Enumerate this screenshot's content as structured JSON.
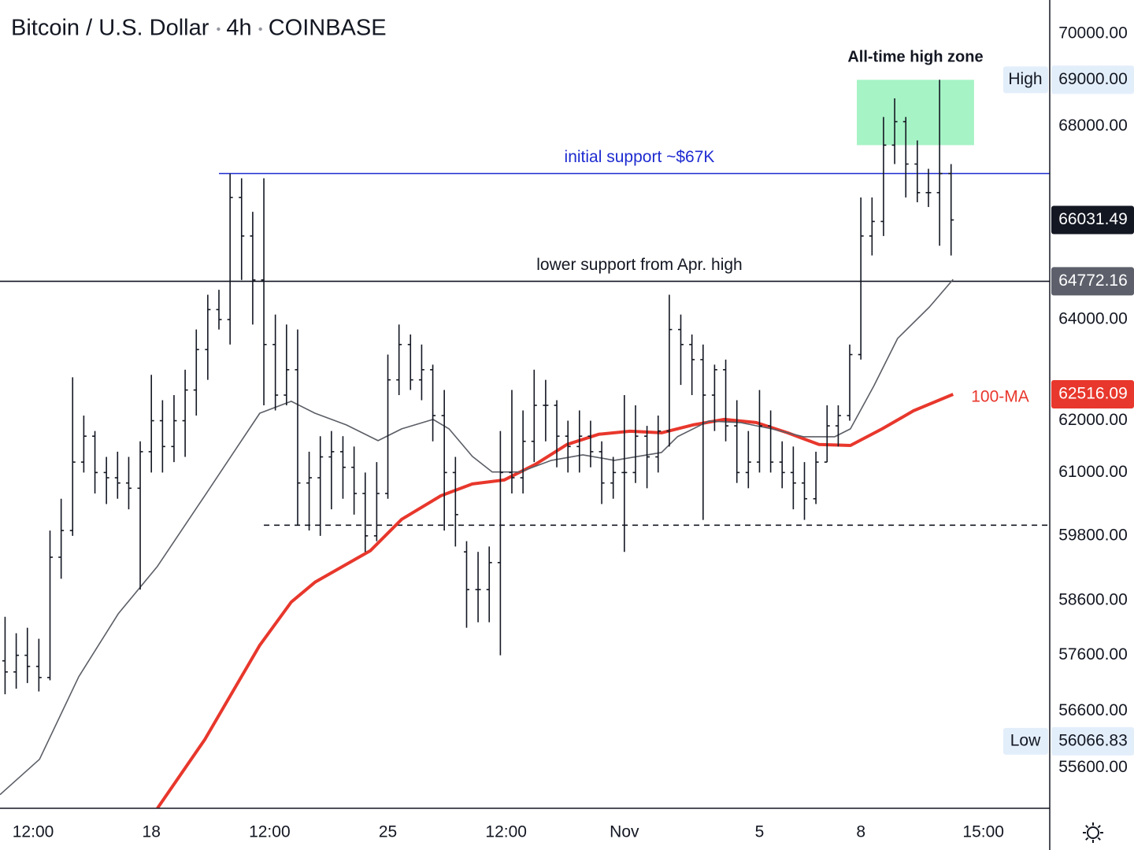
{
  "chart_data": {
    "type": "ohlc",
    "title": "Bitcoin / U.S. Dollar",
    "interval": "4h",
    "exchange": "COINBASE",
    "log": true,
    "bar_color": "#131722",
    "x": [
      -0.33,
      0,
      0.33,
      0.67,
      1,
      1.33,
      1.67,
      2,
      2.33,
      2.67,
      3,
      3.33,
      3.67,
      4,
      4.33,
      4.67,
      5,
      5.33,
      5.67,
      6,
      6.33,
      6.67,
      7,
      7.33,
      7.67,
      8,
      8.33,
      8.67,
      9,
      9.33,
      9.67,
      10,
      10.33,
      10.67,
      11,
      11.33,
      11.67,
      12,
      12.33,
      12.67,
      13,
      13.33,
      13.67,
      14,
      14.33,
      14.67,
      15,
      15.33,
      15.67,
      16,
      16.33,
      16.67,
      17,
      17.33,
      17.67,
      18,
      18.33,
      18.67,
      19,
      19.33,
      19.67,
      20,
      20.33,
      20.67,
      21,
      21.33,
      21.67,
      22,
      22.33,
      22.67,
      23,
      23.33,
      23.67,
      24,
      24.33,
      24.67,
      25,
      25.33,
      25.67,
      26,
      26.33,
      26.67,
      27,
      27.33,
      27.67
    ],
    "open": [
      57500,
      57300,
      57600,
      57400,
      57200,
      59400,
      59900,
      61200,
      61700,
      61000,
      60900,
      60800,
      60700,
      61400,
      62000,
      61500,
      62000,
      62600,
      63400,
      64200,
      64000,
      66500,
      65700,
      64800,
      63500,
      62500,
      63000,
      60800,
      60900,
      61300,
      61400,
      61100,
      60600,
      59800,
      60600,
      62800,
      63500,
      62800,
      63000,
      62100,
      61000,
      59500,
      58800,
      58800,
      59300,
      61000,
      60900,
      61600,
      62300,
      62300,
      61700,
      61500,
      61700,
      61400,
      60800,
      61000,
      61000,
      61700,
      61300,
      61800,
      63800,
      63500,
      63200,
      62500,
      63000,
      61900,
      61000,
      61200,
      61900,
      61200,
      61000,
      60800,
      60500,
      61200,
      61900,
      62100,
      63300,
      65700,
      66000,
      67600,
      68100,
      67200,
      66600,
      66600,
      67000
    ],
    "high": [
      58300,
      58000,
      58100,
      57900,
      59900,
      60500,
      62850,
      62100,
      61800,
      61300,
      61400,
      61300,
      61600,
      62900,
      62400,
      62500,
      63000,
      63800,
      64500,
      64600,
      67000,
      66900,
      66200,
      66900,
      64100,
      63900,
      63800,
      61400,
      61700,
      61800,
      61700,
      61500,
      61000,
      61200,
      63300,
      63900,
      63700,
      63500,
      63100,
      62600,
      61300,
      59700,
      59500,
      59600,
      61800,
      62600,
      62200,
      63000,
      62800,
      62400,
      62000,
      62200,
      62000,
      61600,
      61300,
      62500,
      62300,
      61900,
      62100,
      64500,
      64100,
      63700,
      63500,
      63100,
      63200,
      62400,
      61800,
      62600,
      62200,
      61600,
      61500,
      61200,
      61400,
      62300,
      62300,
      63500,
      66500,
      66500,
      68200,
      68600,
      68200,
      67700,
      67100,
      69000,
      67200
    ],
    "low": [
      56900,
      57000,
      57100,
      56950,
      57150,
      59000,
      59800,
      61000,
      60600,
      60400,
      60500,
      60300,
      58800,
      61000,
      61000,
      61200,
      61300,
      62100,
      62800,
      63800,
      63500,
      64800,
      63900,
      62300,
      62200,
      62300,
      60000,
      59900,
      59800,
      60300,
      60500,
      60200,
      59500,
      59700,
      60500,
      62500,
      62600,
      62400,
      61600,
      59900,
      59600,
      58100,
      58200,
      58200,
      57600,
      60600,
      60600,
      61200,
      61600,
      61100,
      61000,
      61000,
      61100,
      60400,
      60500,
      59500,
      60800,
      60700,
      61000,
      61500,
      62700,
      62500,
      60100,
      61800,
      61600,
      60800,
      60700,
      61000,
      61000,
      60700,
      60300,
      60100,
      60400,
      61200,
      61500,
      62000,
      63200,
      65300,
      65700,
      67200,
      66500,
      66400,
      66300,
      65500,
      65300
    ],
    "close": [
      57300,
      57600,
      57400,
      57200,
      59400,
      59900,
      61200,
      61700,
      61000,
      60900,
      60800,
      60700,
      61400,
      62000,
      61500,
      62000,
      62600,
      63400,
      64200,
      64000,
      66500,
      65700,
      64800,
      63500,
      62500,
      63000,
      60800,
      60900,
      61300,
      61400,
      61100,
      60600,
      59800,
      60600,
      62800,
      63500,
      62800,
      63000,
      62100,
      61000,
      60200,
      58800,
      58800,
      59300,
      61000,
      60900,
      61600,
      62300,
      62300,
      61700,
      61500,
      61700,
      61400,
      60800,
      61000,
      61000,
      61700,
      61300,
      61800,
      63800,
      63500,
      63200,
      62500,
      63000,
      61900,
      61000,
      61200,
      61900,
      61200,
      61000,
      60800,
      60500,
      61200,
      61900,
      62100,
      63300,
      65700,
      66000,
      67600,
      68100,
      67200,
      66600,
      66600,
      67000,
      66031.49
    ],
    "moving_averages": [
      {
        "name": "100-MA",
        "color": "#e8372c",
        "x": [
          4.18,
          5.58,
          7.21,
          8.14,
          8.84,
          10.48,
          11.41,
          12.57,
          13.5,
          14.44,
          15.37,
          16.3,
          17.24,
          18.17,
          19.1,
          20.03,
          20.96,
          21.9,
          22.83,
          23.76,
          24.69,
          25.63,
          26.56,
          27.73
        ],
        "values": [
          54900,
          56096,
          57782,
          58570,
          58935,
          59520,
          60111,
          60557,
          60782,
          60857,
          61158,
          61538,
          61736,
          61796,
          61766,
          61918,
          62026,
          61964,
          61766,
          61538,
          61520,
          61842,
          62194,
          62516.09
        ]
      },
      {
        "color": "#5b5e66",
        "x": [
          -0.48,
          0.69,
          1.85,
          3.02,
          4.18,
          5.58,
          6.51,
          7.21,
          8.14,
          8.84,
          9.77,
          10.71,
          11.41,
          12.34,
          12.81,
          13.5,
          14.09,
          14.91,
          15.84,
          16.77,
          17.7,
          18.4,
          19.1,
          19.57,
          20.5,
          21.43,
          22.36,
          23.3,
          24.23,
          24.69,
          25.39,
          26.09,
          27.03,
          27.73
        ],
        "values": [
          55135,
          55751,
          57215,
          58356,
          59230,
          60557,
          61461,
          62147,
          62378,
          62147,
          61918,
          61613,
          61842,
          62026,
          61842,
          61310,
          61010,
          61010,
          61234,
          61340,
          61234,
          61310,
          61385,
          61689,
          61995,
          61964,
          61842,
          61689,
          61689,
          61842,
          62687,
          63623,
          64254,
          64811
        ]
      }
    ],
    "levels": [
      {
        "value": 67000,
        "label": "initial support ~$67K",
        "color": "#1e2bd0",
        "from": 6.0
      },
      {
        "value": 64772.16,
        "label": "lower support from Apr. high",
        "color": "#131722",
        "from": -0.48
      },
      {
        "value": 60000,
        "color": "#131722",
        "from": 7.33,
        "dashed": true
      }
    ],
    "zone": {
      "label": "All-time high zone",
      "x": [
        24.88,
        28.35
      ],
      "y": [
        67600,
        69000
      ],
      "color": "#a6f3c6"
    },
    "markers": [
      {
        "name": "High",
        "value": 69000,
        "label": "69000.00"
      },
      {
        "name": "Low",
        "value": 56066.83
      }
    ],
    "xlim": [
      -0.48,
      30.59
    ],
    "ylim": [
      54900,
      70750
    ],
    "xticks": [
      {
        "value": 0.5,
        "label": "12:00"
      },
      {
        "value": 4,
        "label": "18"
      },
      {
        "value": 7.5,
        "label": "12:00"
      },
      {
        "value": 11,
        "label": "25"
      },
      {
        "value": 14.5,
        "label": "12:00"
      },
      {
        "value": 18,
        "label": "Nov"
      },
      {
        "value": 22,
        "label": "5"
      },
      {
        "value": 25,
        "label": "8"
      },
      {
        "value": 28.625,
        "label": "15:00"
      }
    ],
    "yticks": [
      {
        "value": 70000,
        "label": "70000.00"
      },
      {
        "value": 68000,
        "label": "68000.00"
      },
      {
        "value": 64000,
        "label": "64000.00"
      },
      {
        "value": 62000,
        "label": "62000.00"
      },
      {
        "value": 61000,
        "label": "61000.00"
      },
      {
        "value": 59800,
        "label": "59800.00"
      },
      {
        "value": 58600,
        "label": "58600.00"
      },
      {
        "value": 57600,
        "label": "57600.00"
      },
      {
        "value": 56600,
        "label": "56600.00"
      },
      {
        "value": 55600,
        "label": "55600.00"
      }
    ]
  }
}
